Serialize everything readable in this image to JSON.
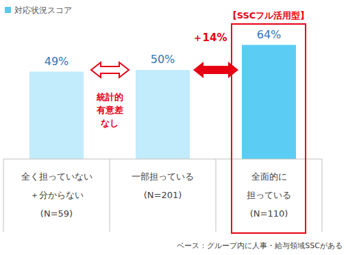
{
  "chart_data": {
    "type": "bar",
    "categories": [
      "全く担っていない\n＋分からない\n(N=59)",
      "一部担っている\n(N=201)",
      "全面的に\n担っている\n(N=110)"
    ],
    "series": [
      {
        "name": "対応状況スコア",
        "values": [
          49,
          50,
          64
        ],
        "value_labels": [
          "49%",
          "50%",
          "64%"
        ],
        "colors": [
          "#c2ebfc",
          "#c2ebfc",
          "#5bcdf5"
        ]
      }
    ],
    "ylim": [
      0,
      80
    ],
    "data_labels": true,
    "tick_labels": "x",
    "grid": false,
    "legend": "top-left",
    "annotations": [
      "統計的\n有意差\nなし",
      "＋14%",
      "【SSCフル活用型】",
      "ベース：グループ内に人事・給与領域SSCがある"
    ]
  }
}
